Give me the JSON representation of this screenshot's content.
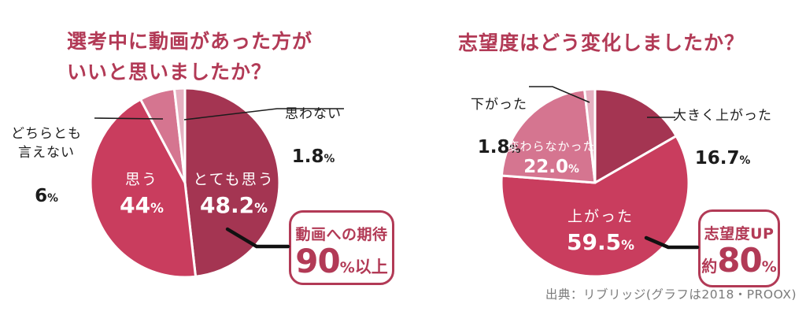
{
  "accent_color": "#b23a56",
  "percent_sign": "%",
  "chart_data": [
    {
      "type": "pie",
      "title": "選考中に動画があった方が\nいいと思いましたか？",
      "direction": "clockwise",
      "start_angle_deg": 0,
      "legend_position": "none",
      "slices": [
        {
          "label": "とても思う",
          "value": 48.2,
          "value_text": "48.2",
          "color": "#a43552",
          "label_position": "inside"
        },
        {
          "label": "思う",
          "value": 44,
          "value_text": "44",
          "color": "#c93d5e",
          "label_position": "inside"
        },
        {
          "label": "どちらとも\n言えない",
          "value": 6,
          "value_text": "6",
          "color": "#d57590",
          "label_position": "outside"
        },
        {
          "label": "思わない",
          "value": 1.8,
          "value_text": "1.8",
          "color": "#e6b0c1",
          "label_position": "outside"
        }
      ],
      "callout": {
        "title": "動画への期待",
        "prefix": "",
        "number": "90",
        "percent": "%",
        "suffix": "以上"
      }
    },
    {
      "type": "pie",
      "title": "志望度はどう変化しましたか？",
      "direction": "clockwise",
      "start_angle_deg": 0,
      "legend_position": "none",
      "slices": [
        {
          "label": "大きく上がった",
          "value": 16.7,
          "value_text": "16.7",
          "color": "#a43552",
          "label_position": "outside"
        },
        {
          "label": "上がった",
          "value": 59.5,
          "value_text": "59.5",
          "color": "#c93d5e",
          "label_position": "inside"
        },
        {
          "label": "変わらなかった",
          "value": 22.0,
          "value_text": "22.0",
          "color": "#d57590",
          "label_position": "inside"
        },
        {
          "label": "下がった",
          "value": 1.8,
          "value_text": "1.8",
          "color": "#e6b0c1",
          "label_position": "outside"
        }
      ],
      "callout": {
        "title": "志望度UP",
        "prefix": "約",
        "number": "80",
        "percent": "%",
        "suffix": ""
      }
    }
  ],
  "source_note": "出典：リブリッジ(グラフは2018・PROOX)"
}
